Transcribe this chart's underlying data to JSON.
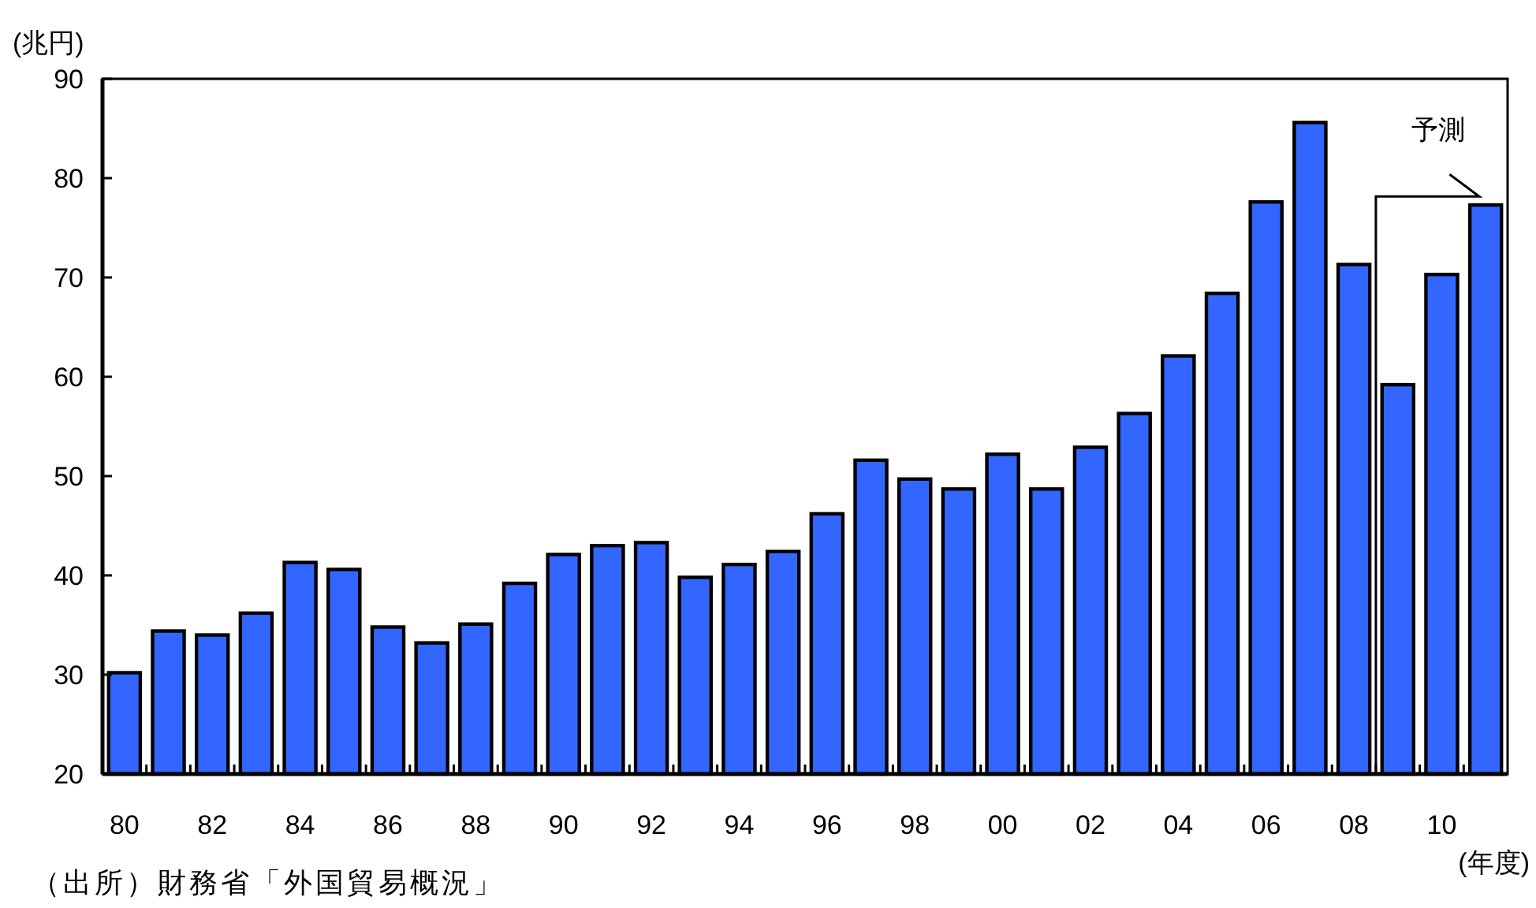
{
  "chart_data": {
    "type": "bar",
    "ylabel": "(兆円)",
    "xlabel": "(年度)",
    "categories": [
      "80",
      null,
      "82",
      null,
      "84",
      null,
      "86",
      null,
      "88",
      null,
      "90",
      null,
      "92",
      null,
      "94",
      null,
      "96",
      null,
      "98",
      null,
      "00",
      null,
      "02",
      null,
      "04",
      null,
      "06",
      null,
      "08",
      null,
      "10",
      null
    ],
    "values": [
      30.2,
      34.4,
      34.0,
      36.2,
      41.3,
      40.6,
      34.8,
      33.2,
      35.1,
      39.2,
      42.1,
      43.0,
      43.3,
      39.8,
      41.1,
      42.4,
      46.2,
      51.6,
      49.7,
      48.7,
      52.2,
      48.7,
      52.9,
      56.3,
      62.1,
      68.4,
      77.6,
      85.6,
      71.3,
      59.2,
      70.3,
      77.3
    ],
    "color": "#3366ff",
    "ylim": [
      20,
      90
    ],
    "yticks": [
      20,
      30,
      40,
      50,
      60,
      70,
      80,
      90
    ],
    "grid": false,
    "annotations": [
      "予測",
      "（出所）財務省「外国貿易概況」"
    ]
  }
}
